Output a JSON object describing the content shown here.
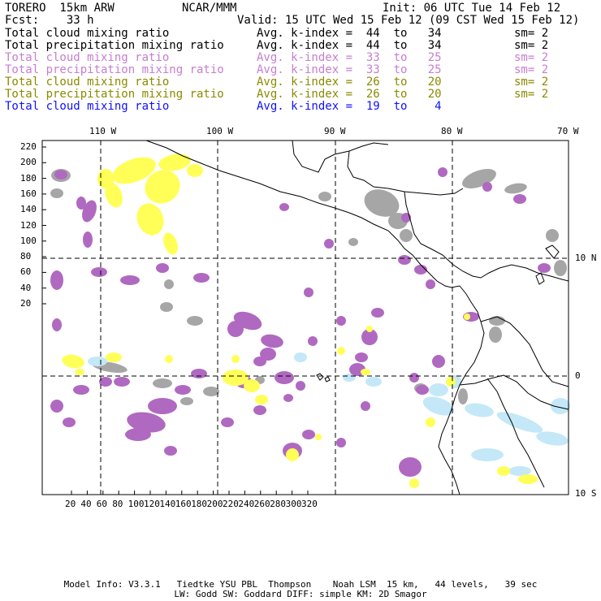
{
  "header": {
    "model": "TORERO  15km ARW",
    "org": "NCAR/MMM",
    "init": "Init: 06 UTC Tue 14 Feb 12",
    "fcst": "Fcst:    33 h",
    "valid": "Valid: 15 UTC Wed 15 Feb 12 (09 CST Wed 15 Feb 12)"
  },
  "legend": [
    {
      "name": "Total cloud mixing ratio",
      "kindex": "Avg. k-index =  44  to   34",
      "sm": "sm= 2",
      "color": "#000000"
    },
    {
      "name": "Total precipitation mixing ratio",
      "kindex": "Avg. k-index =  44  to   34",
      "sm": "sm= 2",
      "color": "#000000"
    },
    {
      "name": "Total cloud mixing ratio",
      "kindex": "Avg. k-index =  33  to   25",
      "sm": "sm= 2",
      "color": "#c77ecf"
    },
    {
      "name": "Total precipitation mixing ratio",
      "kindex": "Avg. k-index =  33  to   25",
      "sm": "sm= 2",
      "color": "#c77ecf"
    },
    {
      "name": "Total cloud mixing ratio",
      "kindex": "Avg. k-index =  26  to   20",
      "sm": "sm= 2",
      "color": "#8a8a00"
    },
    {
      "name": "Total precipitation mixing ratio",
      "kindex": "Avg. k-index =  26  to   20",
      "sm": "sm= 2",
      "color": "#8a8a00"
    },
    {
      "name": "Total cloud mixing ratio",
      "kindex": "Avg. k-index =  19  to    4",
      "sm": "",
      "color": "#1010ff"
    }
  ],
  "map": {
    "lon_labels": [
      "110 W",
      "100 W",
      "90 W",
      "80 W",
      "70 W"
    ],
    "lat_labels": [
      "10 N",
      "0",
      "10 S"
    ],
    "y_ticks": [
      "220",
      "200",
      "180",
      "160",
      "140",
      "120",
      "100",
      "80",
      "60",
      "40",
      "20"
    ],
    "x_ticks": [
      "20",
      "40",
      "60",
      "80",
      "100",
      "120",
      "140",
      "160",
      "180",
      "200",
      "220",
      "240",
      "260",
      "280",
      "300",
      "320"
    ],
    "colors": {
      "gray": "#a6a6a6",
      "purple": "#b069c0",
      "yellow": "#ffff57",
      "lightblue": "#c4e8f8"
    }
  },
  "footer": {
    "line1": "Model Info: V3.3.1   Tiedtke YSU PBL  Thompson    Noah LSM  15 km,   44 levels,   39 sec",
    "line2": "LW: Godd SW: Goddard DIFF: simple KM: 2D Smagor"
  }
}
